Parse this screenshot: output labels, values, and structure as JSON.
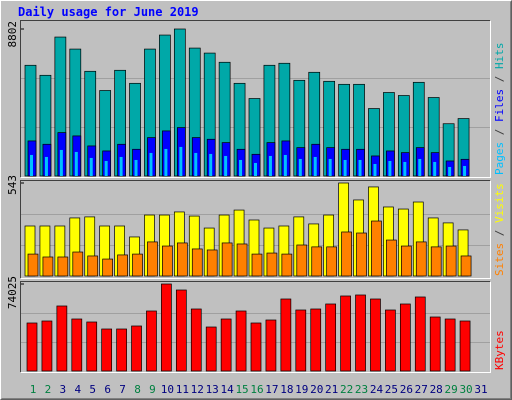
{
  "chart_data": [
    {
      "type": "bar",
      "title": "Daily usage for June 2019",
      "legend_separator": " / ",
      "ylim": [
        0,
        8802
      ],
      "yticks": [
        8802
      ],
      "series": [
        {
          "name": "Hits",
          "color": "#00a8a8",
          "values": [
            6630,
            6030,
            8320,
            7600,
            6270,
            5120,
            6330,
            5550,
            7600,
            8440,
            8802,
            7660,
            7360,
            6810,
            5550,
            4640,
            6630,
            6750,
            5730,
            6210,
            5670,
            5490,
            5490,
            4040,
            5000,
            4820,
            5610,
            4700,
            3130,
            3440,
            null
          ]
        },
        {
          "name": "Files",
          "color": "#0000ff",
          "values": [
            2100,
            1900,
            2600,
            2400,
            1800,
            1500,
            1900,
            1600,
            2300,
            2700,
            2900,
            2300,
            2200,
            2000,
            1600,
            1300,
            2000,
            2100,
            1700,
            1900,
            1700,
            1600,
            1600,
            1200,
            1500,
            1400,
            1700,
            1400,
            900,
            1000,
            null
          ]
        },
        {
          "name": "Pages",
          "color": "#00c0ff",
          "values": [
            1260,
            1140,
            1560,
            1440,
            1080,
            900,
            1140,
            960,
            1380,
            1620,
            1740,
            1380,
            1320,
            1200,
            960,
            780,
            1200,
            1260,
            1020,
            1140,
            1020,
            960,
            960,
            720,
            900,
            840,
            1020,
            840,
            540,
            600,
            null
          ]
        }
      ]
    },
    {
      "type": "bar",
      "legend_separator": " / ",
      "ylim": [
        0,
        543
      ],
      "yticks": [
        543
      ],
      "series": [
        {
          "name": "Visits",
          "color": "#ffff00",
          "values": [
            292,
            292,
            292,
            339,
            345,
            292,
            292,
            228,
            356,
            356,
            374,
            350,
            280,
            356,
            385,
            327,
            280,
            292,
            345,
            304,
            356,
            543,
            444,
            520,
            403,
            391,
            432,
            339,
            310,
            269,
            null
          ]
        },
        {
          "name": "Sites",
          "color": "#ff8000",
          "values": [
            128,
            111,
            111,
            140,
            117,
            99,
            123,
            128,
            199,
            175,
            193,
            158,
            152,
            193,
            187,
            128,
            134,
            128,
            181,
            170,
            170,
            257,
            251,
            321,
            210,
            175,
            199,
            170,
            175,
            117,
            null
          ]
        }
      ]
    },
    {
      "type": "bar",
      "ylim": [
        0,
        74025
      ],
      "yticks": [
        74025
      ],
      "series": [
        {
          "name": "KBytes",
          "color": "#ff0000",
          "values": [
            40850,
            42550,
            55320,
            44250,
            41700,
            35740,
            35740,
            38300,
            51060,
            74025,
            68920,
            52760,
            37440,
            44250,
            51060,
            40850,
            43400,
            61270,
            51910,
            52760,
            57020,
            63830,
            64680,
            61270,
            51910,
            57020,
            62980,
            45950,
            44250,
            42550,
            null
          ]
        }
      ],
      "categories": [
        1,
        2,
        3,
        4,
        5,
        6,
        7,
        8,
        9,
        10,
        11,
        12,
        13,
        14,
        15,
        16,
        17,
        18,
        19,
        20,
        21,
        22,
        23,
        24,
        25,
        26,
        27,
        28,
        29,
        30,
        31
      ],
      "x_label_colors": [
        "#008040",
        "#008040",
        "#000080",
        "#000080",
        "#000080",
        "#000080",
        "#000080",
        "#008040",
        "#008040",
        "#000080",
        "#000080",
        "#000080",
        "#000080",
        "#000080",
        "#008040",
        "#008040",
        "#000080",
        "#000080",
        "#000080",
        "#000080",
        "#000080",
        "#008040",
        "#008040",
        "#000080",
        "#000080",
        "#000080",
        "#000080",
        "#000080",
        "#008040",
        "#008040",
        "#000080"
      ]
    }
  ]
}
